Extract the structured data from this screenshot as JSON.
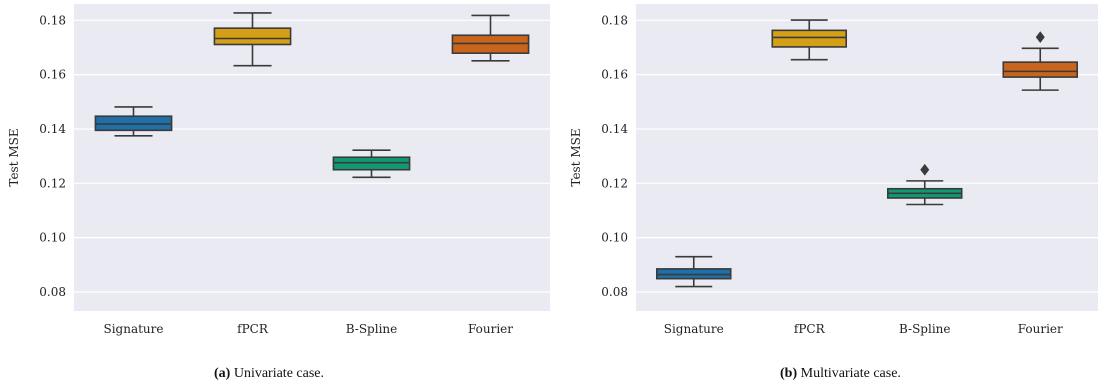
{
  "chart_data": [
    {
      "type": "box",
      "categories": [
        "Signature",
        "fPCR",
        "B-Spline",
        "Fourier"
      ],
      "ylabel": "Test MSE",
      "ylim": [
        0.073,
        0.186
      ],
      "yticks": [
        0.08,
        0.1,
        0.12,
        0.14,
        0.16,
        0.18
      ],
      "ytick_labels": [
        "0.08",
        "0.10",
        "0.12",
        "0.14",
        "0.16",
        "0.18"
      ],
      "grid": true,
      "colors": [
        "#1f6fa8",
        "#d4a017",
        "#0f9a73",
        "#c8641b"
      ],
      "boxes": [
        {
          "whisker_low": 0.1375,
          "q1": 0.1395,
          "median": 0.1418,
          "q3": 0.1447,
          "whisker_high": 0.1481,
          "outliers": []
        },
        {
          "whisker_low": 0.1633,
          "q1": 0.1711,
          "median": 0.1733,
          "q3": 0.1771,
          "whisker_high": 0.1827,
          "outliers": []
        },
        {
          "whisker_low": 0.1222,
          "q1": 0.125,
          "median": 0.1276,
          "q3": 0.1296,
          "whisker_high": 0.1322,
          "outliers": []
        },
        {
          "whisker_low": 0.1651,
          "q1": 0.1679,
          "median": 0.1715,
          "q3": 0.1745,
          "whisker_high": 0.1818,
          "outliers": []
        }
      ],
      "caption_prefix": "(a)",
      "caption_text": " Univariate case."
    },
    {
      "type": "box",
      "categories": [
        "Signature",
        "fPCR",
        "B-Spline",
        "Fourier"
      ],
      "ylabel": "Test MSE",
      "ylim": [
        0.073,
        0.186
      ],
      "yticks": [
        0.08,
        0.1,
        0.12,
        0.14,
        0.16,
        0.18
      ],
      "ytick_labels": [
        "0.08",
        "0.10",
        "0.12",
        "0.14",
        "0.16",
        "0.18"
      ],
      "grid": true,
      "colors": [
        "#1f6fa8",
        "#d4a017",
        "#0f9a73",
        "#c8641b"
      ],
      "boxes": [
        {
          "whisker_low": 0.082,
          "q1": 0.0849,
          "median": 0.0864,
          "q3": 0.0885,
          "whisker_high": 0.093,
          "outliers": []
        },
        {
          "whisker_low": 0.1655,
          "q1": 0.1702,
          "median": 0.1737,
          "q3": 0.1763,
          "whisker_high": 0.1801,
          "outliers": []
        },
        {
          "whisker_low": 0.1122,
          "q1": 0.1146,
          "median": 0.1163,
          "q3": 0.118,
          "whisker_high": 0.1209,
          "outliers": [
            0.125
          ]
        },
        {
          "whisker_low": 0.1543,
          "q1": 0.1591,
          "median": 0.1612,
          "q3": 0.1646,
          "whisker_high": 0.1697,
          "outliers": [
            0.1738
          ]
        }
      ],
      "caption_prefix": "(b)",
      "caption_text": " Multivariate case."
    }
  ]
}
